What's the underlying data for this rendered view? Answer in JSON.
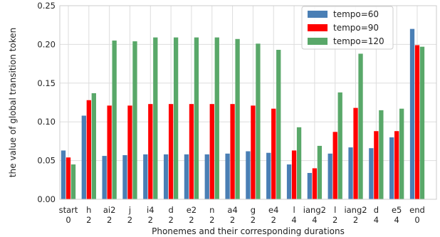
{
  "chart_data": {
    "type": "bar",
    "xlabel": "Phonemes and their corresponding durations",
    "ylabel": "the value of global transition token",
    "ylim": [
      0,
      0.25
    ],
    "yticks": [
      "0.00",
      "0.05",
      "0.10",
      "0.15",
      "0.20",
      "0.25"
    ],
    "grid": true,
    "legend_position": "top-right",
    "categories": [
      {
        "phoneme": "start",
        "duration": "0"
      },
      {
        "phoneme": "h",
        "duration": "2"
      },
      {
        "phoneme": "ai2",
        "duration": "2"
      },
      {
        "phoneme": "j",
        "duration": "2"
      },
      {
        "phoneme": "i4",
        "duration": "2"
      },
      {
        "phoneme": "d",
        "duration": "2"
      },
      {
        "phoneme": "e2",
        "duration": "2"
      },
      {
        "phoneme": "n",
        "duration": "2"
      },
      {
        "phoneme": "a4",
        "duration": "2"
      },
      {
        "phoneme": "g",
        "duration": "2"
      },
      {
        "phoneme": "e4",
        "duration": "2"
      },
      {
        "phoneme": "l",
        "duration": "4"
      },
      {
        "phoneme": "iang2",
        "duration": "4"
      },
      {
        "phoneme": "l",
        "duration": "2"
      },
      {
        "phoneme": "iang2",
        "duration": "2"
      },
      {
        "phoneme": "d",
        "duration": "4"
      },
      {
        "phoneme": "e5",
        "duration": "4"
      },
      {
        "phoneme": "end",
        "duration": "0"
      }
    ],
    "series": [
      {
        "name": "tempo=60",
        "color": "#4a7fb5",
        "values": [
          0.063,
          0.108,
          0.056,
          0.057,
          0.058,
          0.058,
          0.058,
          0.058,
          0.059,
          0.062,
          0.06,
          0.045,
          0.034,
          0.059,
          0.067,
          0.066,
          0.08,
          0.22
        ]
      },
      {
        "name": "tempo=90",
        "color": "#ff0000",
        "values": [
          0.054,
          0.128,
          0.121,
          0.121,
          0.123,
          0.123,
          0.123,
          0.123,
          0.123,
          0.121,
          0.117,
          0.063,
          0.04,
          0.087,
          0.118,
          0.088,
          0.088,
          0.199
        ]
      },
      {
        "name": "tempo=120",
        "color": "#59a869",
        "values": [
          0.045,
          0.137,
          0.205,
          0.204,
          0.209,
          0.209,
          0.209,
          0.209,
          0.207,
          0.201,
          0.193,
          0.093,
          0.069,
          0.138,
          0.188,
          0.115,
          0.117,
          0.197
        ]
      }
    ]
  }
}
